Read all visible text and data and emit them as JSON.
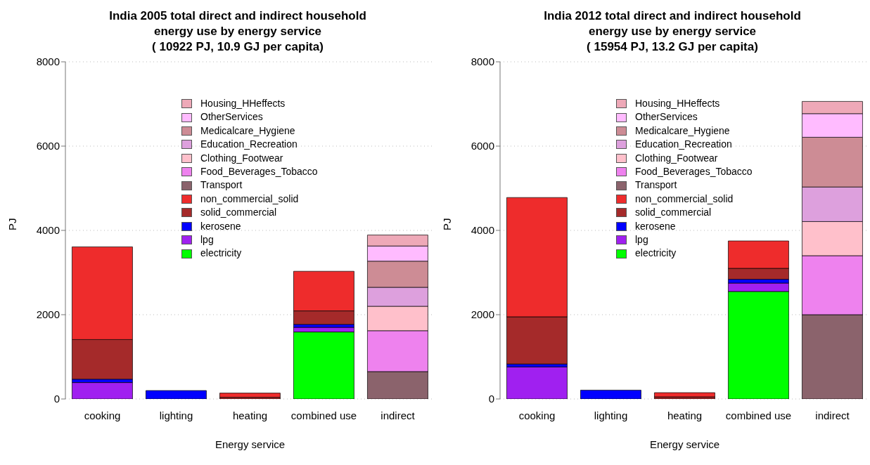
{
  "chart_data": [
    {
      "type": "bar",
      "title": "India 2005 total direct and indirect household energy use by energy service",
      "subtitle": "( 10922 PJ, 10.9 GJ per capita)",
      "xlabel": "Energy service",
      "ylabel": "PJ",
      "categories": [
        "cooking",
        "lighting",
        "heating",
        "combined use",
        "indirect"
      ],
      "stacked": true,
      "ylim": [
        0,
        8000
      ],
      "yticks": [
        0,
        2000,
        4000,
        6000,
        8000
      ],
      "grid": "y",
      "legend": "top",
      "series": [
        {
          "name": "electricity",
          "color": "#00ff00",
          "values": [
            0,
            0,
            0,
            1590,
            0
          ]
        },
        {
          "name": "lpg",
          "color": "#a020f0",
          "values": [
            390,
            0,
            0,
            110,
            0
          ]
        },
        {
          "name": "kerosene",
          "color": "#0000ff",
          "values": [
            80,
            200,
            0,
            70,
            0
          ]
        },
        {
          "name": "solid_commercial",
          "color": "#a52a2a",
          "values": [
            940,
            0,
            40,
            320,
            0
          ]
        },
        {
          "name": "non_commercial_solid",
          "color": "#ee2c2c",
          "values": [
            2200,
            0,
            100,
            940,
            0
          ]
        },
        {
          "name": "Transport",
          "color": "#8b636c",
          "values": [
            0,
            0,
            0,
            0,
            650
          ]
        },
        {
          "name": "Food_Beverages_Tobacco",
          "color": "#ee82ee",
          "values": [
            0,
            0,
            0,
            0,
            970
          ]
        },
        {
          "name": "Clothing_Footwear",
          "color": "#ffc0cb",
          "values": [
            0,
            0,
            0,
            0,
            580
          ]
        },
        {
          "name": "Education_Recreation",
          "color": "#dda0dd",
          "values": [
            0,
            0,
            0,
            0,
            450
          ]
        },
        {
          "name": "Medicalcare_Hygiene",
          "color": "#cd8c95",
          "values": [
            0,
            0,
            0,
            0,
            620
          ]
        },
        {
          "name": "OtherServices",
          "color": "#ffbbff",
          "values": [
            0,
            0,
            0,
            0,
            360
          ]
        },
        {
          "name": "Housing_HHeffects",
          "color": "#eea9b8",
          "values": [
            0,
            0,
            0,
            0,
            260
          ]
        }
      ]
    },
    {
      "type": "bar",
      "title": "India 2012 total direct and indirect household energy use by energy service",
      "subtitle": "( 15954 PJ, 13.2 GJ per capita)",
      "xlabel": "Energy service",
      "ylabel": "PJ",
      "categories": [
        "cooking",
        "lighting",
        "heating",
        "combined use",
        "indirect"
      ],
      "stacked": true,
      "ylim": [
        0,
        8000
      ],
      "yticks": [
        0,
        2000,
        4000,
        6000,
        8000
      ],
      "grid": "y",
      "legend": "top",
      "series": [
        {
          "name": "electricity",
          "color": "#00ff00",
          "values": [
            0,
            0,
            0,
            2550,
            0
          ]
        },
        {
          "name": "lpg",
          "color": "#a020f0",
          "values": [
            760,
            0,
            0,
            200,
            0
          ]
        },
        {
          "name": "kerosene",
          "color": "#0000ff",
          "values": [
            70,
            210,
            0,
            90,
            0
          ]
        },
        {
          "name": "solid_commercial",
          "color": "#a52a2a",
          "values": [
            1120,
            0,
            50,
            260,
            0
          ]
        },
        {
          "name": "non_commercial_solid",
          "color": "#ee2c2c",
          "values": [
            2830,
            0,
            100,
            650,
            0
          ]
        },
        {
          "name": "Transport",
          "color": "#8b636c",
          "values": [
            0,
            0,
            0,
            0,
            2000
          ]
        },
        {
          "name": "Food_Beverages_Tobacco",
          "color": "#ee82ee",
          "values": [
            0,
            0,
            0,
            0,
            1400
          ]
        },
        {
          "name": "Clothing_Footwear",
          "color": "#ffc0cb",
          "values": [
            0,
            0,
            0,
            0,
            810
          ]
        },
        {
          "name": "Education_Recreation",
          "color": "#dda0dd",
          "values": [
            0,
            0,
            0,
            0,
            820
          ]
        },
        {
          "name": "Medicalcare_Hygiene",
          "color": "#cd8c95",
          "values": [
            0,
            0,
            0,
            0,
            1180
          ]
        },
        {
          "name": "OtherServices",
          "color": "#ffbbff",
          "values": [
            0,
            0,
            0,
            0,
            560
          ]
        },
        {
          "name": "Housing_HHeffects",
          "color": "#eea9b8",
          "values": [
            0,
            0,
            0,
            0,
            290
          ]
        }
      ]
    }
  ]
}
